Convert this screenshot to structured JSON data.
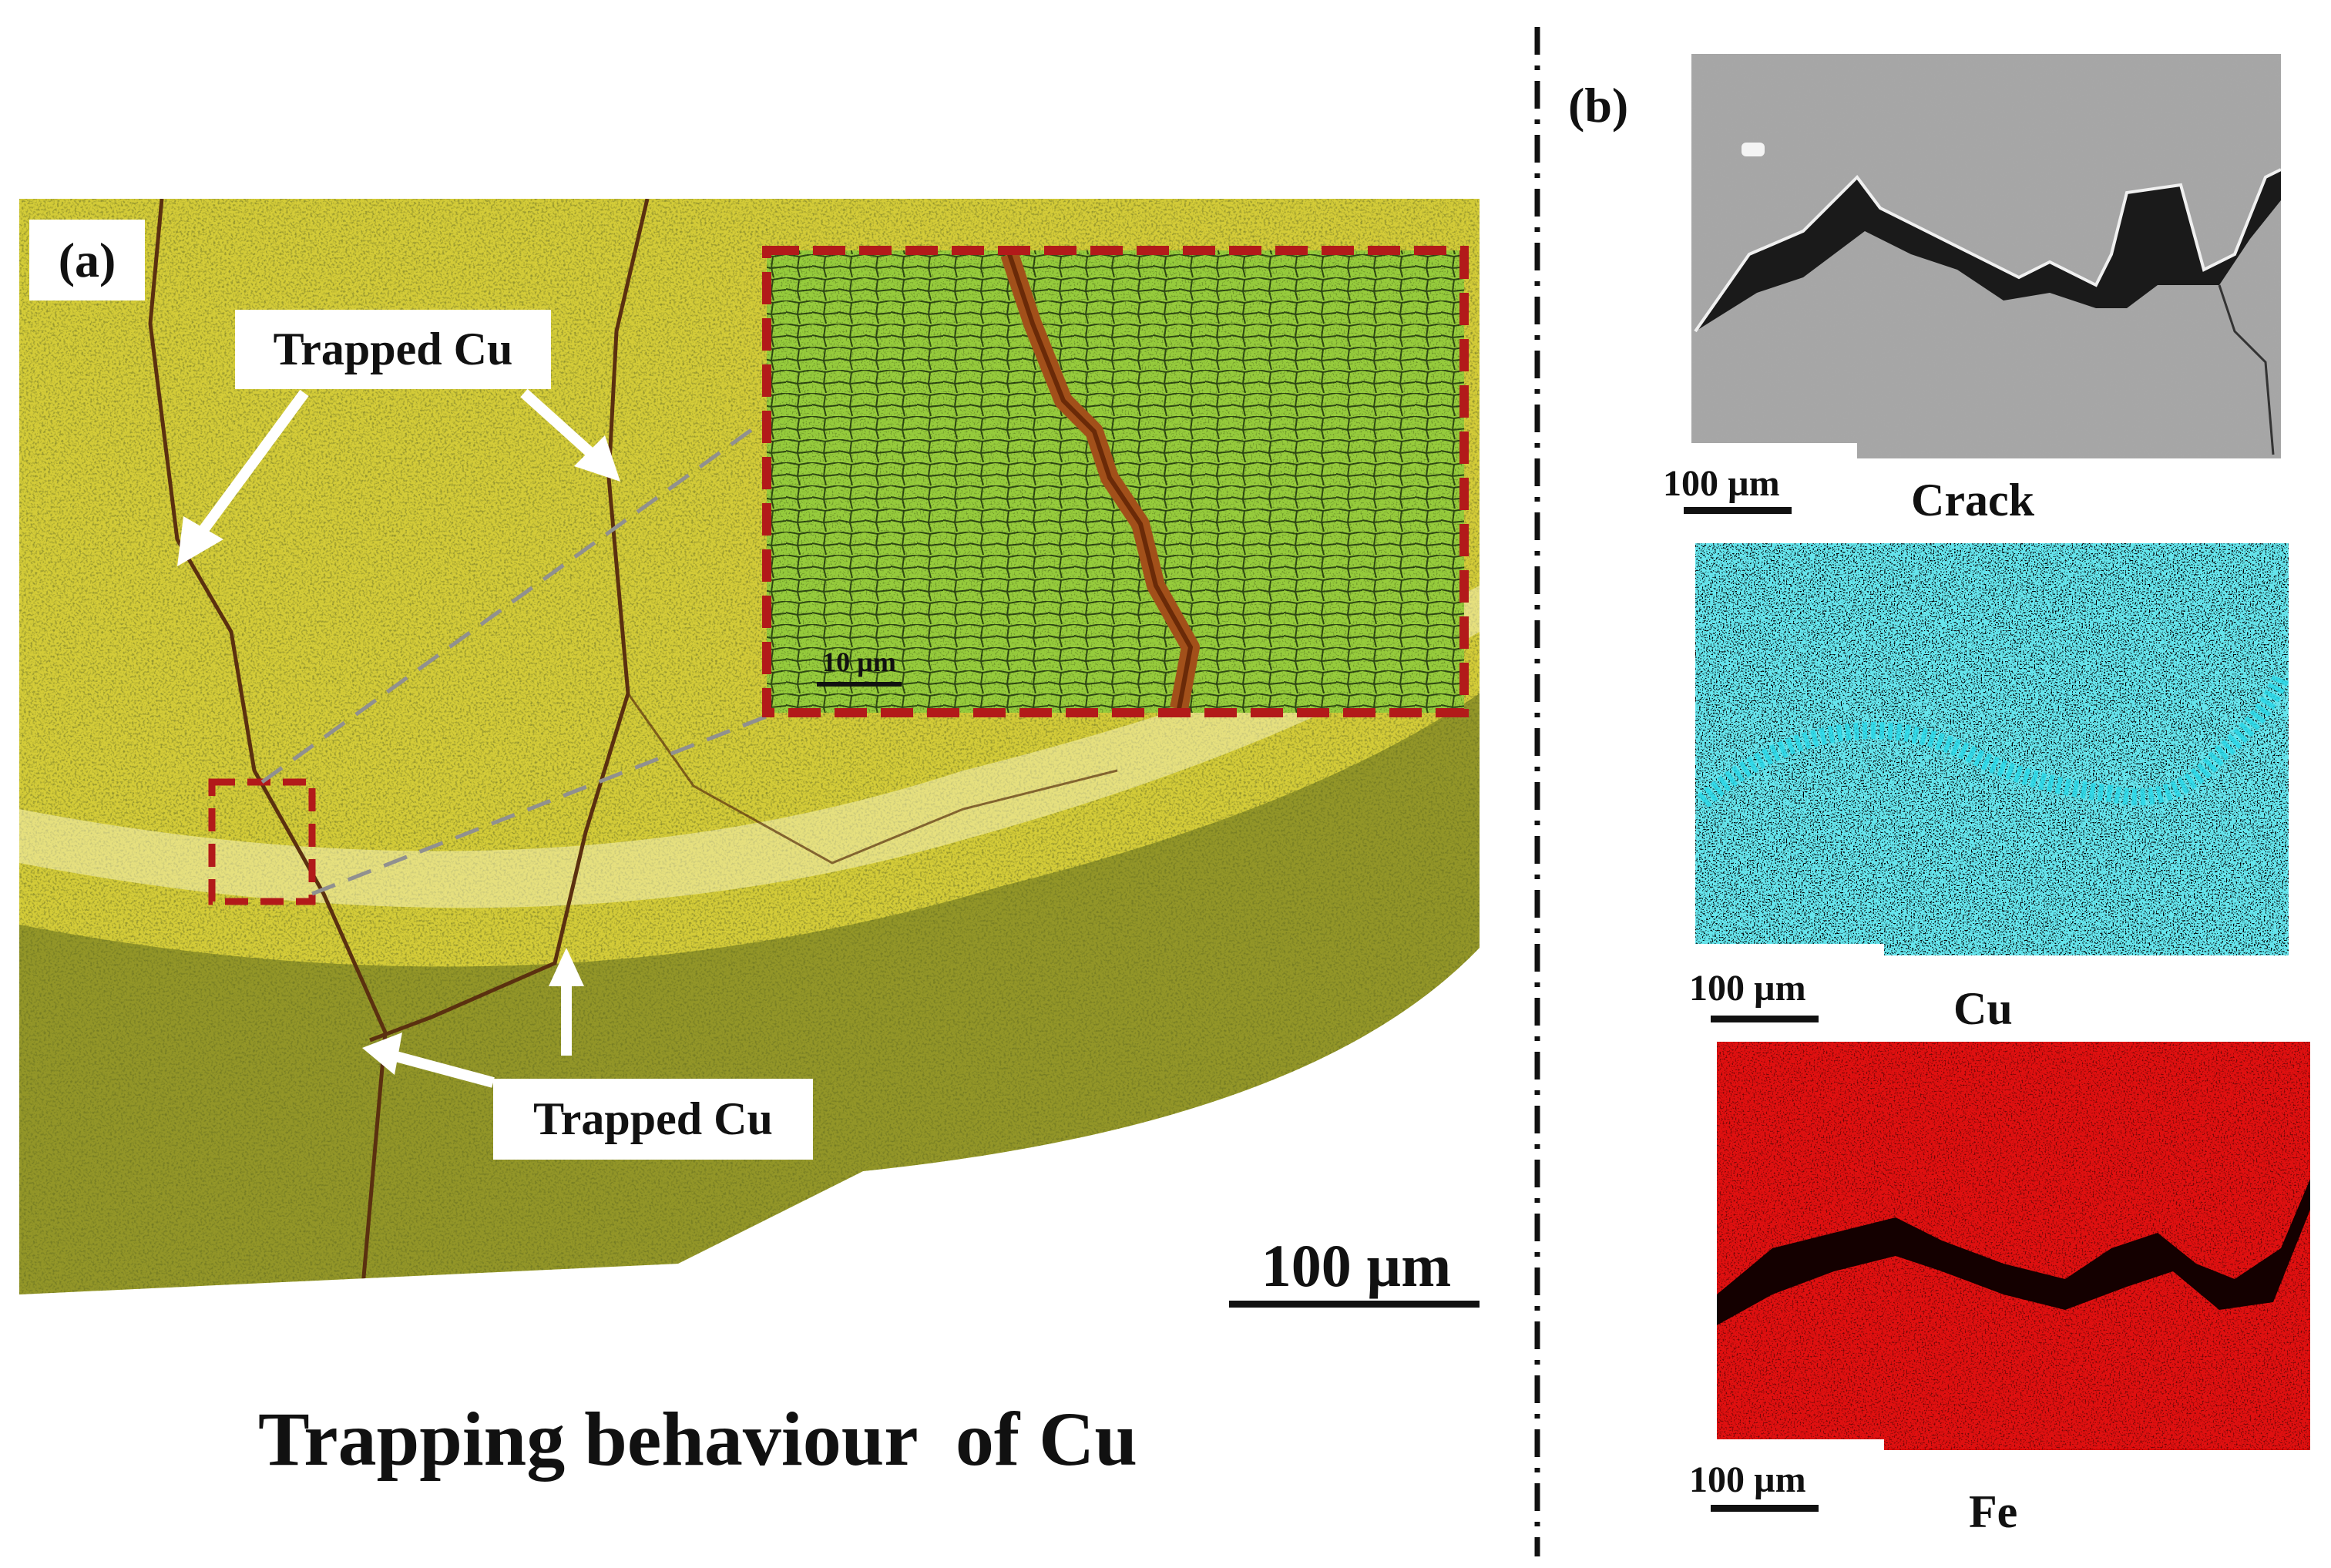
{
  "panel_a": {
    "label": "(a)",
    "annotations": [
      "Trapped Cu",
      "Trapped Cu"
    ],
    "inset_scale": "10 µm",
    "scale_bar": "100 µm",
    "caption": "Trapping behaviour  of Cu",
    "colors": {
      "micrograph": "#d9d23a",
      "inset": "#8fc93a",
      "frame": "#b21a1a",
      "crack": "#7a3a10"
    }
  },
  "panel_b": {
    "label": "(b)",
    "maps": [
      {
        "name": "Crack",
        "scale": "100 µm",
        "color": "#9a9a9a"
      },
      {
        "name": "Cu",
        "scale": "100 µm",
        "color": "#22c8d8"
      },
      {
        "name": "Fe",
        "scale": "100 µm",
        "color": "#e01010"
      }
    ]
  }
}
